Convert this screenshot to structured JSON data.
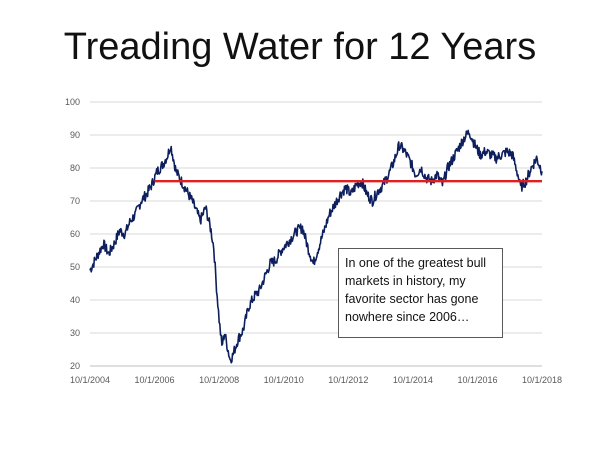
{
  "slide": {
    "title": "Treading Water for 12 Years",
    "annotation": "In one of the greatest bull markets in history, my favorite sector has gone nowhere since 2006…"
  },
  "chart_data": {
    "type": "line",
    "title": "Treading Water for 12 Years",
    "xlabel": "",
    "ylabel": "",
    "ylim": [
      20,
      100
    ],
    "yticks": [
      20,
      30,
      40,
      50,
      60,
      70,
      80,
      90,
      100
    ],
    "xlim": [
      "2004-10-01",
      "2018-10-01"
    ],
    "xticks": [
      "10/1/2004",
      "10/1/2006",
      "10/1/2008",
      "10/1/2010",
      "10/1/2012",
      "10/1/2014",
      "10/1/2016",
      "10/1/2018"
    ],
    "grid": "horizontal",
    "legend": "none",
    "series": [
      {
        "color": "#0d1f5c",
        "points": [
          [
            "2004-10-01",
            49
          ],
          [
            "2005-01-01",
            54
          ],
          [
            "2005-03-01",
            57
          ],
          [
            "2005-05-01",
            54
          ],
          [
            "2005-07-01",
            57
          ],
          [
            "2005-09-01",
            61
          ],
          [
            "2005-11-01",
            60
          ],
          [
            "2006-01-01",
            64
          ],
          [
            "2006-03-01",
            66
          ],
          [
            "2006-05-01",
            70
          ],
          [
            "2006-07-01",
            72
          ],
          [
            "2006-09-01",
            75
          ],
          [
            "2006-11-01",
            79
          ],
          [
            "2007-01-01",
            81
          ],
          [
            "2007-03-01",
            84
          ],
          [
            "2007-04-01",
            87
          ],
          [
            "2007-06-01",
            79
          ],
          [
            "2007-08-01",
            76
          ],
          [
            "2007-10-01",
            73
          ],
          [
            "2007-12-01",
            70
          ],
          [
            "2008-02-01",
            66
          ],
          [
            "2008-03-01",
            64
          ],
          [
            "2008-05-01",
            68
          ],
          [
            "2008-07-01",
            61
          ],
          [
            "2008-08-01",
            56
          ],
          [
            "2008-09-01",
            44
          ],
          [
            "2008-10-01",
            34
          ],
          [
            "2008-11-01",
            26
          ],
          [
            "2008-12-01",
            30
          ],
          [
            "2009-02-01",
            22
          ],
          [
            "2009-03-01",
            23
          ],
          [
            "2009-05-01",
            28
          ],
          [
            "2009-07-01",
            31
          ],
          [
            "2009-09-01",
            38
          ],
          [
            "2009-11-01",
            41
          ],
          [
            "2010-01-01",
            43
          ],
          [
            "2010-03-01",
            47
          ],
          [
            "2010-05-01",
            51
          ],
          [
            "2010-07-01",
            52
          ],
          [
            "2010-09-01",
            55
          ],
          [
            "2010-11-01",
            57
          ],
          [
            "2011-01-01",
            59
          ],
          [
            "2011-03-01",
            61
          ],
          [
            "2011-05-01",
            62
          ],
          [
            "2011-07-01",
            56
          ],
          [
            "2011-09-01",
            51
          ],
          [
            "2011-11-01",
            56
          ],
          [
            "2012-01-01",
            61
          ],
          [
            "2012-03-01",
            66
          ],
          [
            "2012-05-01",
            69
          ],
          [
            "2012-07-01",
            72
          ],
          [
            "2012-09-01",
            74
          ],
          [
            "2012-11-01",
            72
          ],
          [
            "2013-01-01",
            75
          ],
          [
            "2013-03-01",
            76
          ],
          [
            "2013-05-01",
            72
          ],
          [
            "2013-07-01",
            70
          ],
          [
            "2013-09-01",
            73
          ],
          [
            "2013-11-01",
            75
          ],
          [
            "2014-01-01",
            78
          ],
          [
            "2014-03-01",
            82
          ],
          [
            "2014-05-01",
            87
          ],
          [
            "2014-07-01",
            85
          ],
          [
            "2014-09-01",
            82
          ],
          [
            "2014-11-01",
            78
          ],
          [
            "2015-01-01",
            80
          ],
          [
            "2015-03-01",
            77
          ],
          [
            "2015-05-01",
            76
          ],
          [
            "2015-07-01",
            78
          ],
          [
            "2015-09-01",
            75
          ],
          [
            "2015-11-01",
            80
          ],
          [
            "2016-01-01",
            83
          ],
          [
            "2016-03-01",
            86
          ],
          [
            "2016-05-01",
            89
          ],
          [
            "2016-07-01",
            91
          ],
          [
            "2016-09-01",
            87
          ],
          [
            "2016-11-01",
            84
          ],
          [
            "2017-01-01",
            85
          ],
          [
            "2017-03-01",
            84
          ],
          [
            "2017-05-01",
            83
          ],
          [
            "2017-07-01",
            84
          ],
          [
            "2017-09-01",
            85
          ],
          [
            "2017-11-01",
            84
          ],
          [
            "2018-01-01",
            78
          ],
          [
            "2018-02-01",
            74
          ],
          [
            "2018-04-01",
            76
          ],
          [
            "2018-06-01",
            80
          ],
          [
            "2018-08-01",
            83
          ],
          [
            "2018-10-01",
            79
          ]
        ]
      }
    ],
    "reference_line": {
      "y": 76,
      "x_start": "2006-10-01",
      "x_end": "2018-10-01",
      "color": "#e02020"
    }
  }
}
